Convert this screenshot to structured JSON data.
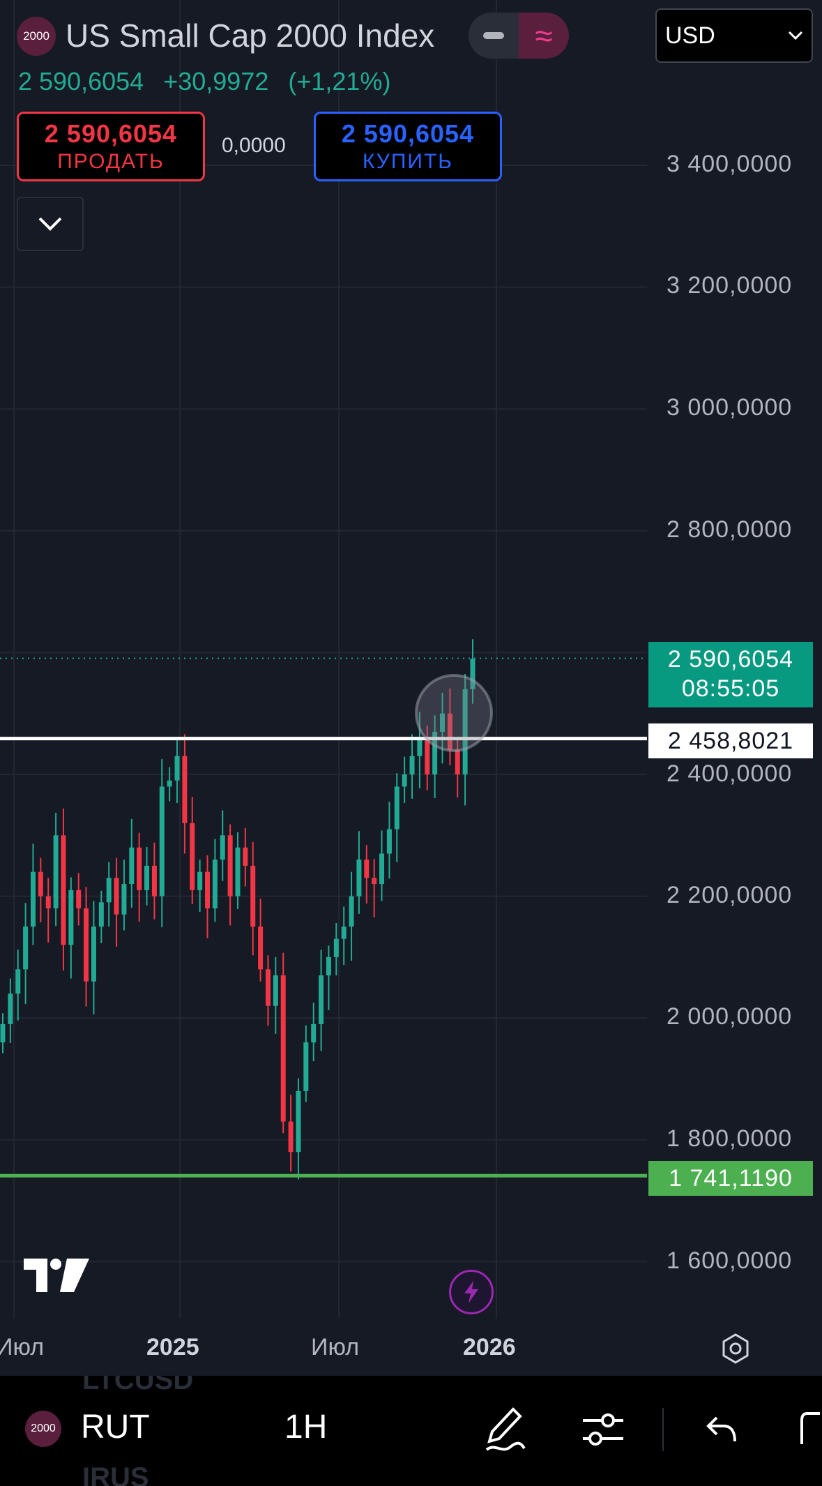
{
  "header": {
    "logo_text": "2000",
    "title": "US Small Cap 2000 Index",
    "mode_wave": "≈",
    "currency": "USD"
  },
  "quote": {
    "last": "2 590,6054",
    "change": "+30,9972",
    "change_pct": "(+1,21%)"
  },
  "trade": {
    "sell_price": "2 590,6054",
    "sell_label": "ПРОДАТЬ",
    "spread": "0,0000",
    "buy_price": "2 590,6054",
    "buy_label": "КУПИТЬ"
  },
  "price_axis": {
    "labels": [
      "3 400,0000",
      "3 200,0000",
      "3 000,0000",
      "2 800,0000",
      "2 400,0000",
      "2 200,0000",
      "2 000,0000",
      "1 800,0000",
      "1 600,0000"
    ],
    "last_price": "2 590,6054",
    "countdown": "08:55:05",
    "horizontal_line_price": "2 458,8021",
    "low_line_price": "1 741,1190"
  },
  "time_axis": {
    "labels": [
      "Июл",
      "2025",
      "Июл",
      "2026"
    ]
  },
  "bottom_bar": {
    "logo_text": "2000",
    "symbol": "RUT",
    "interval": "1H",
    "ghost_top": "LTCUSD",
    "ghost_bottom": "IRUS"
  },
  "colors": {
    "background": "#161a25",
    "up": "#22ab94",
    "down": "#f23645",
    "buy": "#2962ff",
    "line_white": "#ffffff",
    "line_green": "#4caf50"
  },
  "chart_data": {
    "type": "candlestick",
    "symbol": "RUT",
    "y_unit": "USD",
    "ylim": [
      1520,
      3530
    ],
    "weekly_closes_approx": [
      1990,
      2040,
      2080,
      2150,
      2240,
      2200,
      2180,
      2300,
      2120,
      2210,
      2180,
      2060,
      2150,
      2190,
      2230,
      2170,
      2220,
      2280,
      2210,
      2250,
      2200,
      2380,
      2390,
      2430,
      2320,
      2210,
      2240,
      2180,
      2260,
      2300,
      2200,
      2280,
      2250,
      2150,
      2080,
      2020,
      2070,
      1830,
      1780,
      1880,
      1960,
      1990,
      2070,
      2100,
      2130,
      2150,
      2200,
      2260,
      2230,
      2220,
      2270,
      2310,
      2380,
      2400,
      2430,
      2460,
      2400,
      2470,
      2500,
      2440,
      2400,
      2540,
      2590
    ],
    "last": 2590.6054,
    "horizontal_lines": [
      2458.8021,
      1741.119
    ],
    "grid": true
  }
}
